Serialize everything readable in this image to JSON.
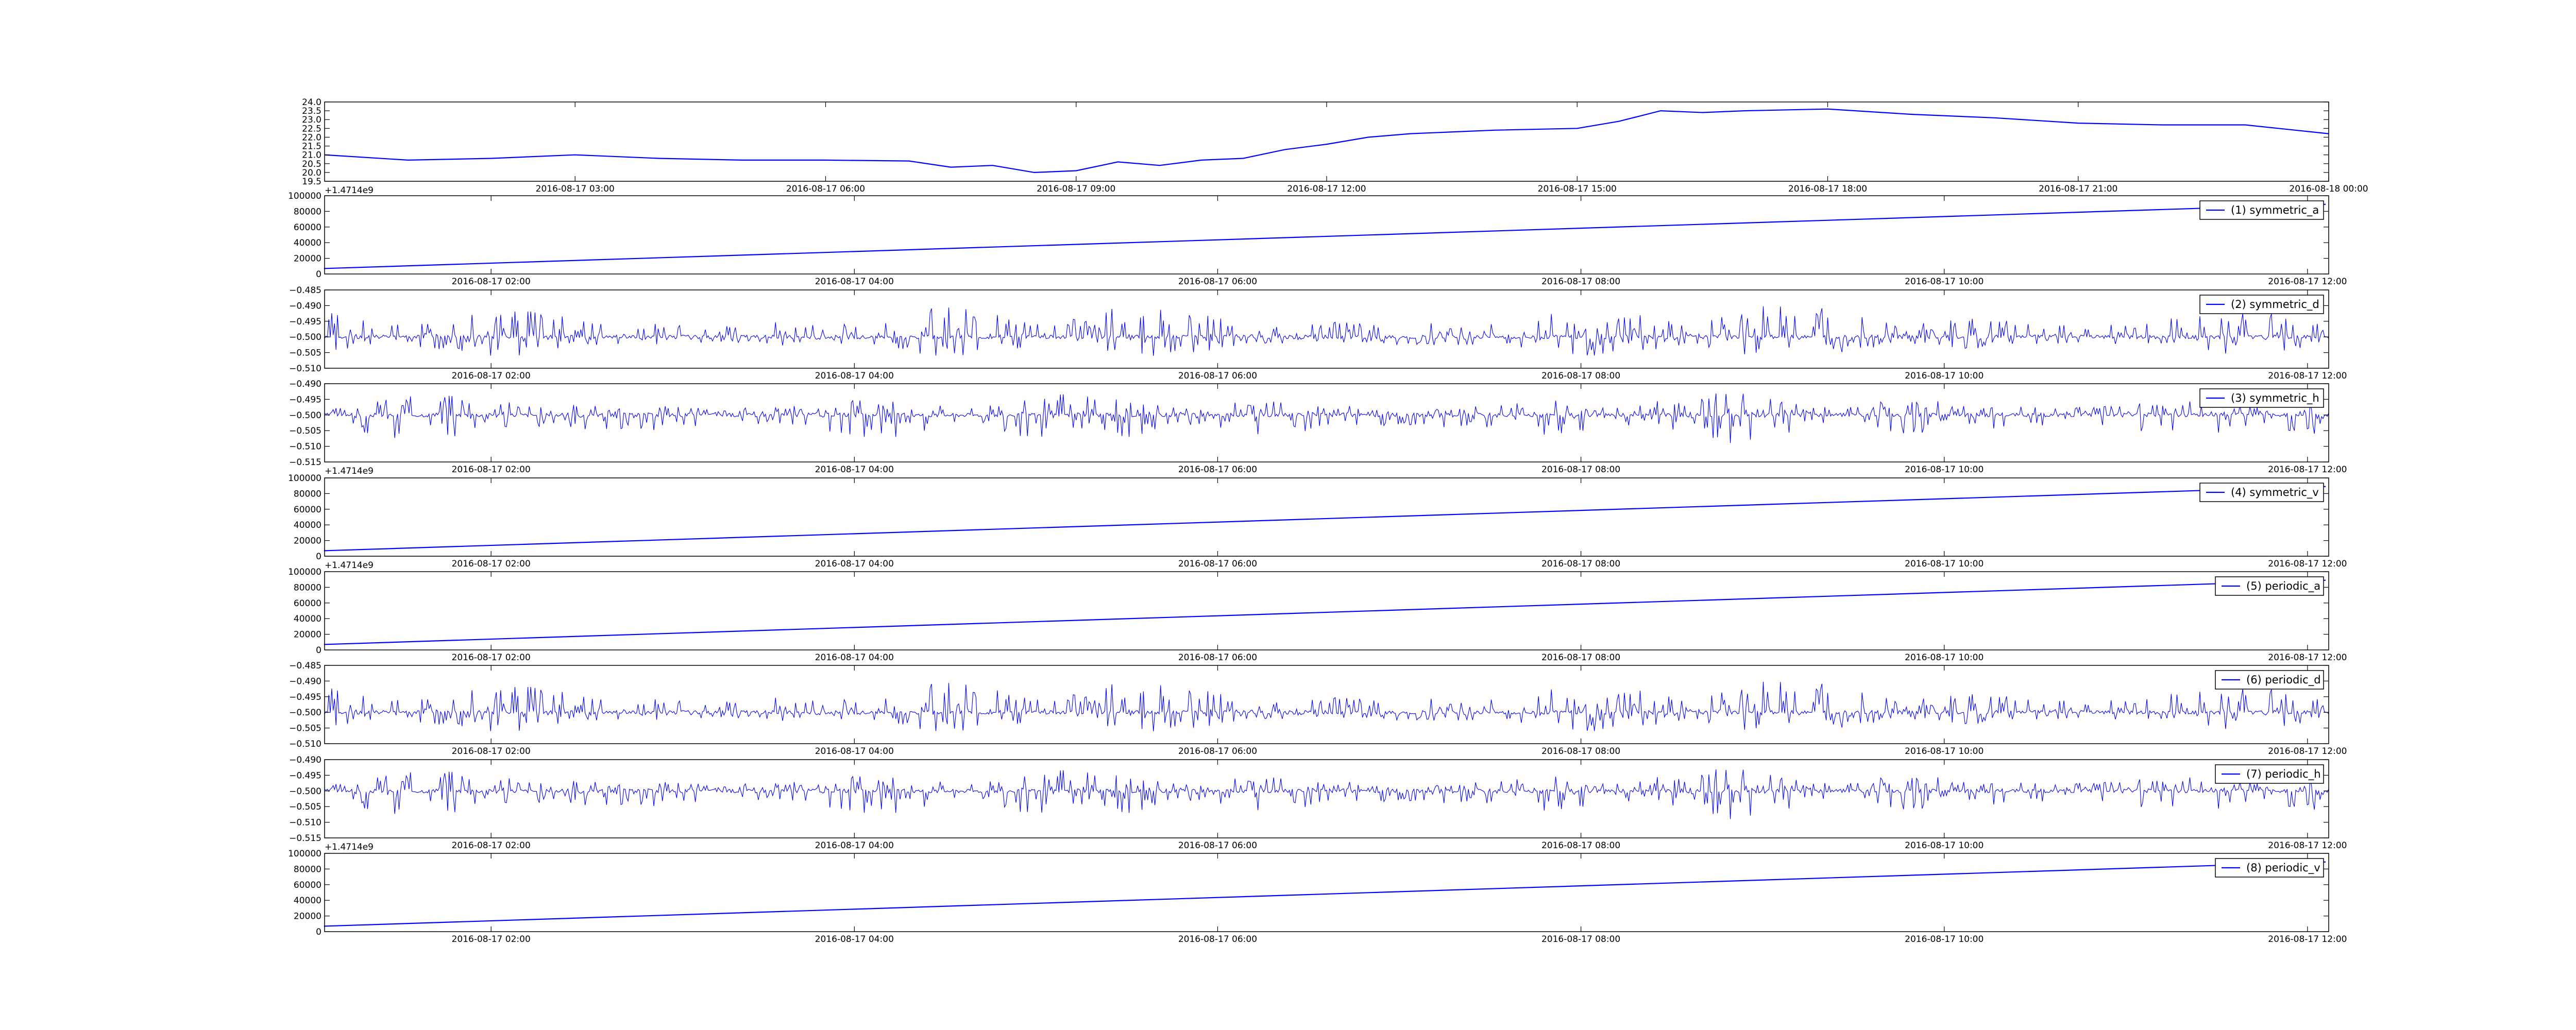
{
  "figure": {
    "panel_count": 9
  },
  "chart_data": [
    {
      "type": "line",
      "x_kind": "time",
      "xlim": [
        "2016-08-17 00:00",
        "2016-08-18 00:00"
      ],
      "ylim": [
        19.5,
        24.0
      ],
      "yticks": [
        19.5,
        20.0,
        20.5,
        21.0,
        21.5,
        22.0,
        22.5,
        23.0,
        23.5,
        24.0
      ],
      "ytick_labels": [
        "19.5",
        "20.0",
        "20.5",
        "21.0",
        "21.5",
        "22.0",
        "22.5",
        "23.0",
        "23.5",
        "24.0"
      ],
      "xtick_labels": [
        "2016-08-17 03:00",
        "2016-08-17 06:00",
        "2016-08-17 09:00",
        "2016-08-17 12:00",
        "2016-08-17 15:00",
        "2016-08-17 18:00",
        "2016-08-17 21:00",
        "2016-08-18 00:00"
      ],
      "xtick_hours": [
        3,
        6,
        9,
        12,
        15,
        18,
        21,
        24
      ],
      "x_offset_label": "+1.4714e9",
      "legend": null,
      "color": "#0000ff",
      "series": [
        {
          "x_hours": [
            0,
            1,
            2,
            3,
            4,
            5,
            6,
            7,
            7.5,
            8,
            8.5,
            9,
            9.5,
            10,
            10.5,
            11,
            11.5,
            12,
            12.5,
            13,
            14,
            15,
            15.5,
            16,
            16.5,
            17,
            18,
            19,
            20,
            21,
            22,
            23,
            24
          ],
          "y": [
            21.0,
            20.7,
            20.8,
            21.0,
            20.8,
            20.7,
            20.7,
            20.65,
            20.3,
            20.4,
            20.0,
            20.1,
            20.6,
            20.4,
            20.7,
            20.8,
            21.3,
            21.6,
            22.0,
            22.2,
            22.4,
            22.5,
            22.9,
            23.5,
            23.4,
            23.5,
            23.6,
            23.3,
            23.1,
            22.8,
            22.7,
            22.7,
            22.2
          ]
        }
      ]
    },
    {
      "type": "line",
      "x_kind": "time",
      "xlim": [
        "2016-08-17 01:05",
        "2016-08-17 12:07"
      ],
      "ylim": [
        0,
        100000
      ],
      "yticks": [
        0,
        20000,
        40000,
        60000,
        80000,
        100000
      ],
      "ytick_labels": [
        "0",
        "20000",
        "40000",
        "60000",
        "80000",
        "100000"
      ],
      "xtick_labels": [
        "2016-08-17 02:00",
        "2016-08-17 04:00",
        "2016-08-17 06:00",
        "2016-08-17 08:00",
        "2016-08-17 10:00",
        "2016-08-17 12:00"
      ],
      "xtick_hours": [
        2,
        4,
        6,
        8,
        10,
        12
      ],
      "x_offset_label": "",
      "legend": "(1) symmetric_a",
      "legend_placement": "top-right",
      "color": "#0000ff",
      "series": [
        {
          "name": "(1) symmetric_a",
          "x_hours": [
            1.08,
            12.1
          ],
          "y": [
            7000,
            89000
          ]
        }
      ]
    },
    {
      "type": "line",
      "x_kind": "time",
      "xlim": [
        "2016-08-17 01:05",
        "2016-08-17 12:07"
      ],
      "ylim": [
        -0.51,
        -0.485
      ],
      "yticks": [
        -0.51,
        -0.505,
        -0.5,
        -0.495,
        -0.49,
        -0.485
      ],
      "ytick_labels": [
        "−0.510",
        "−0.505",
        "−0.500",
        "−0.495",
        "−0.490",
        "−0.485"
      ],
      "xtick_labels": [
        "2016-08-17 02:00",
        "2016-08-17 04:00",
        "2016-08-17 06:00",
        "2016-08-17 08:00",
        "2016-08-17 10:00",
        "2016-08-17 12:00"
      ],
      "xtick_hours": [
        2,
        4,
        6,
        8,
        10,
        12
      ],
      "x_offset_label": "",
      "legend": "(2) symmetric_d",
      "legend_placement": "top-right",
      "color": "#0000ff",
      "noise": {
        "center": -0.5,
        "spread_up": 0.011,
        "spread_down": 0.007,
        "seed": 2
      }
    },
    {
      "type": "line",
      "x_kind": "time",
      "xlim": [
        "2016-08-17 01:05",
        "2016-08-17 12:07"
      ],
      "ylim": [
        -0.515,
        -0.49
      ],
      "yticks": [
        -0.515,
        -0.51,
        -0.505,
        -0.5,
        -0.495,
        -0.49
      ],
      "ytick_labels": [
        "−0.515",
        "−0.510",
        "−0.505",
        "−0.500",
        "−0.495",
        "−0.490"
      ],
      "xtick_labels": [
        "2016-08-17 02:00",
        "2016-08-17 04:00",
        "2016-08-17 06:00",
        "2016-08-17 08:00",
        "2016-08-17 10:00",
        "2016-08-17 12:00"
      ],
      "xtick_hours": [
        2,
        4,
        6,
        8,
        10,
        12
      ],
      "x_offset_label": "+1.4714e9",
      "legend": "(3) symmetric_h",
      "legend_placement": "top-right",
      "color": "#0000ff",
      "noise": {
        "center": -0.5,
        "spread_up": 0.007,
        "spread_down": 0.01,
        "seed": 3
      }
    },
    {
      "type": "line",
      "x_kind": "time",
      "xlim": [
        "2016-08-17 01:05",
        "2016-08-17 12:07"
      ],
      "ylim": [
        0,
        100000
      ],
      "yticks": [
        0,
        20000,
        40000,
        60000,
        80000,
        100000
      ],
      "ytick_labels": [
        "0",
        "20000",
        "40000",
        "60000",
        "80000",
        "100000"
      ],
      "xtick_labels": [
        "2016-08-17 02:00",
        "2016-08-17 04:00",
        "2016-08-17 06:00",
        "2016-08-17 08:00",
        "2016-08-17 10:00",
        "2016-08-17 12:00"
      ],
      "xtick_hours": [
        2,
        4,
        6,
        8,
        10,
        12
      ],
      "x_offset_label": "+1.4714e9",
      "legend": "(4) symmetric_v",
      "legend_placement": "top-right",
      "color": "#0000ff",
      "series": [
        {
          "name": "(4) symmetric_v",
          "x_hours": [
            1.08,
            12.1
          ],
          "y": [
            7000,
            89000
          ]
        }
      ]
    },
    {
      "type": "line",
      "x_kind": "time",
      "xlim": [
        "2016-08-17 01:05",
        "2016-08-17 12:07"
      ],
      "ylim": [
        0,
        100000
      ],
      "yticks": [
        0,
        20000,
        40000,
        60000,
        80000,
        100000
      ],
      "ytick_labels": [
        "0",
        "20000",
        "40000",
        "60000",
        "80000",
        "100000"
      ],
      "xtick_labels": [
        "2016-08-17 02:00",
        "2016-08-17 04:00",
        "2016-08-17 06:00",
        "2016-08-17 08:00",
        "2016-08-17 10:00",
        "2016-08-17 12:00"
      ],
      "xtick_hours": [
        2,
        4,
        6,
        8,
        10,
        12
      ],
      "x_offset_label": "",
      "legend": "(5) periodic_a",
      "legend_placement": "top-right",
      "color": "#0000ff",
      "series": [
        {
          "name": "(5) periodic_a",
          "x_hours": [
            1.08,
            12.1
          ],
          "y": [
            7000,
            89000
          ]
        }
      ]
    },
    {
      "type": "line",
      "x_kind": "time",
      "xlim": [
        "2016-08-17 01:05",
        "2016-08-17 12:07"
      ],
      "ylim": [
        -0.51,
        -0.485
      ],
      "yticks": [
        -0.51,
        -0.505,
        -0.5,
        -0.495,
        -0.49,
        -0.485
      ],
      "ytick_labels": [
        "−0.510",
        "−0.505",
        "−0.500",
        "−0.495",
        "−0.490",
        "−0.485"
      ],
      "xtick_labels": [
        "2016-08-17 02:00",
        "2016-08-17 04:00",
        "2016-08-17 06:00",
        "2016-08-17 08:00",
        "2016-08-17 10:00",
        "2016-08-17 12:00"
      ],
      "xtick_hours": [
        2,
        4,
        6,
        8,
        10,
        12
      ],
      "x_offset_label": "",
      "legend": "(6) periodic_d",
      "legend_placement": "top-right",
      "color": "#0000ff",
      "noise": {
        "center": -0.5,
        "spread_up": 0.011,
        "spread_down": 0.007,
        "seed": 2
      }
    },
    {
      "type": "line",
      "x_kind": "time",
      "xlim": [
        "2016-08-17 01:05",
        "2016-08-17 12:07"
      ],
      "ylim": [
        -0.515,
        -0.49
      ],
      "yticks": [
        -0.515,
        -0.51,
        -0.505,
        -0.5,
        -0.495,
        -0.49
      ],
      "ytick_labels": [
        "−0.515",
        "−0.510",
        "−0.505",
        "−0.500",
        "−0.495",
        "−0.490"
      ],
      "xtick_labels": [
        "2016-08-17 02:00",
        "2016-08-17 04:00",
        "2016-08-17 06:00",
        "2016-08-17 08:00",
        "2016-08-17 10:00",
        "2016-08-17 12:00"
      ],
      "xtick_hours": [
        2,
        4,
        6,
        8,
        10,
        12
      ],
      "x_offset_label": "+1.4714e9",
      "legend": "(7) periodic_h",
      "legend_placement": "top-right",
      "color": "#0000ff",
      "noise": {
        "center": -0.5,
        "spread_up": 0.007,
        "spread_down": 0.01,
        "seed": 3
      }
    },
    {
      "type": "line",
      "x_kind": "time",
      "xlim": [
        "2016-08-17 01:05",
        "2016-08-17 12:07"
      ],
      "ylim": [
        0,
        100000
      ],
      "yticks": [
        0,
        20000,
        40000,
        60000,
        80000,
        100000
      ],
      "ytick_labels": [
        "0",
        "20000",
        "40000",
        "60000",
        "80000",
        "100000"
      ],
      "xtick_labels": [
        "2016-08-17 02:00",
        "2016-08-17 04:00",
        "2016-08-17 06:00",
        "2016-08-17 08:00",
        "2016-08-17 10:00",
        "2016-08-17 12:00"
      ],
      "xtick_hours": [
        2,
        4,
        6,
        8,
        10,
        12
      ],
      "x_offset_label": "",
      "legend": "(8) periodic_v",
      "legend_placement": "top-right",
      "color": "#0000ff",
      "series": [
        {
          "name": "(8) periodic_v",
          "x_hours": [
            1.08,
            12.1
          ],
          "y": [
            7000,
            89000
          ]
        }
      ]
    }
  ]
}
